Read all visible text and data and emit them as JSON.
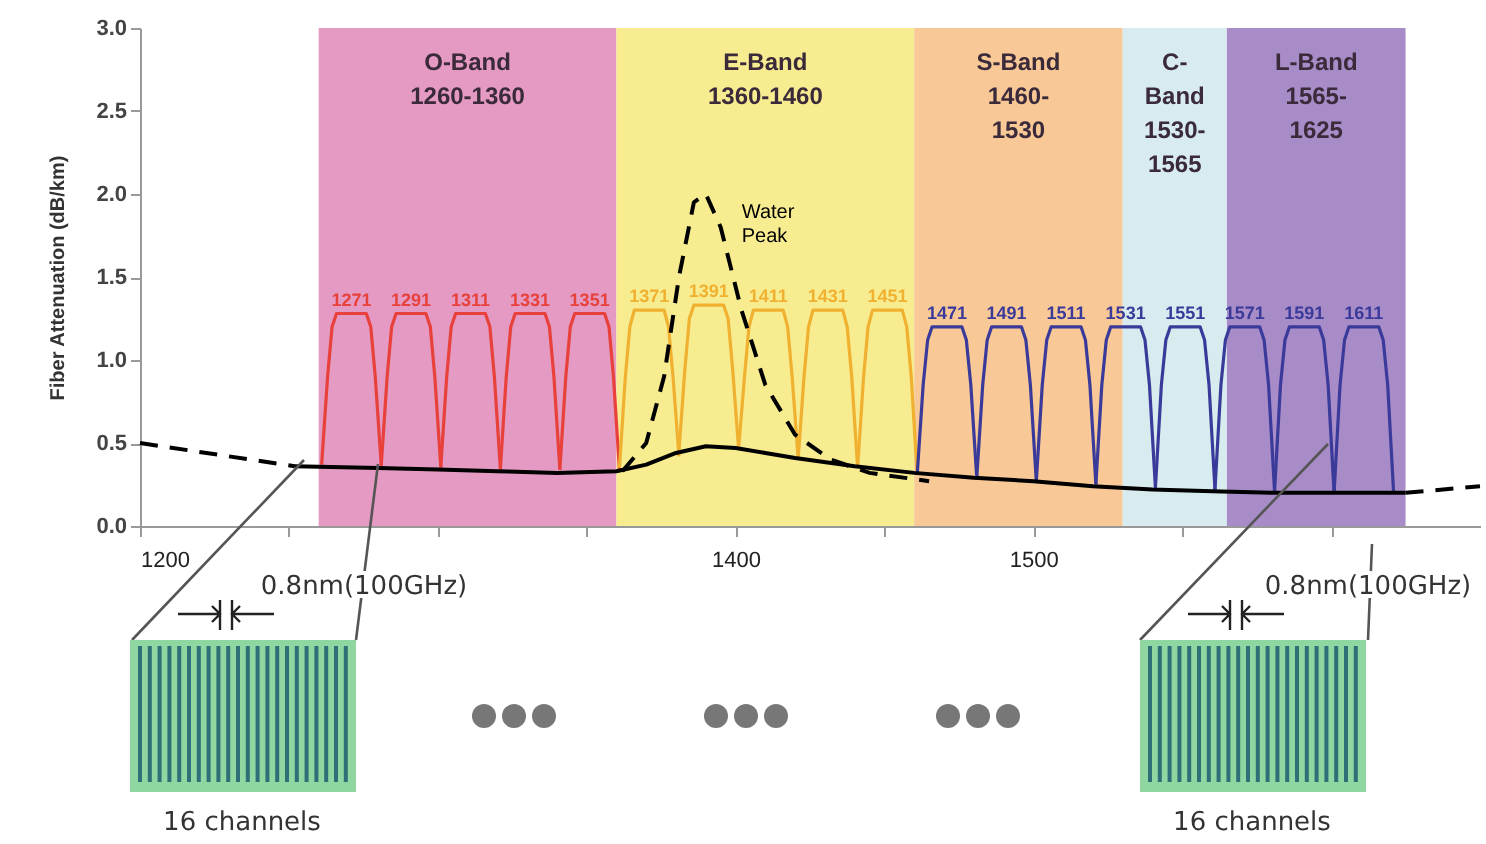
{
  "chart_data": {
    "type": "line",
    "ylabel": "Fiber Attenuation (dB/km)",
    "xlim": [
      1200,
      1650
    ],
    "ylim": [
      0,
      3
    ],
    "xticks": [
      1200,
      {
        "value": 1250,
        "label": null
      },
      {
        "value": 1300,
        "label": null
      },
      {
        "value": 1350,
        "label": null
      },
      1400,
      {
        "value": 1450,
        "label": null
      },
      1500,
      {
        "value": 1550,
        "label": null
      },
      {
        "value": 1600,
        "label": null
      }
    ],
    "yticks": [
      {
        "value": 0,
        "label": "0.0"
      },
      0.5,
      {
        "value": 1,
        "label": "1.0"
      },
      1.5,
      {
        "value": 2,
        "label": "2.0"
      },
      2.5,
      {
        "value": 3,
        "label": "3.0"
      }
    ],
    "grid": false,
    "marker": "none",
    "bands": [
      {
        "axis": "x",
        "from": 1260,
        "to": 1360,
        "label": "O-Band\n1260-1360",
        "color": "#e49ac2"
      },
      {
        "axis": "x",
        "from": 1360,
        "to": 1460,
        "label": "E-Band\n1360-1460",
        "color": "#f8ec90"
      },
      {
        "axis": "x",
        "from": 1460,
        "to": 1530,
        "label": "S-Band\n1460-\n1530",
        "color": "#f8c896"
      },
      {
        "axis": "x",
        "from": 1530,
        "to": 1565,
        "label": "C-\nBand\n1530-\n1565",
        "color": "#d8ecf0"
      },
      {
        "axis": "x",
        "from": 1565,
        "to": 1625,
        "label": "L-Band\n1565-\n1625",
        "color": "#a88cc8"
      }
    ],
    "series": [
      {
        "name": "1271",
        "color": "#e8403a",
        "x": [
          1261,
          1263,
          1264.5,
          1266,
          1276,
          1277.5,
          1279,
          1281
        ],
        "values": [
          0.37,
          0.9,
          1.2,
          1.28,
          1.28,
          1.2,
          0.9,
          0.37
        ]
      },
      {
        "name": "1291",
        "color": "#e8403a",
        "x": [
          1281,
          1283,
          1284.5,
          1286,
          1296,
          1297.5,
          1299,
          1301
        ],
        "values": [
          0.36,
          0.9,
          1.2,
          1.28,
          1.28,
          1.2,
          0.9,
          0.36
        ]
      },
      {
        "name": "1311",
        "color": "#e8403a",
        "x": [
          1301,
          1303,
          1304.5,
          1306,
          1316,
          1317.5,
          1319,
          1321
        ],
        "values": [
          0.35,
          0.9,
          1.2,
          1.28,
          1.28,
          1.2,
          0.9,
          0.35
        ]
      },
      {
        "name": "1331",
        "color": "#e8403a",
        "x": [
          1321,
          1323,
          1324.5,
          1326,
          1336,
          1337.5,
          1339,
          1341
        ],
        "values": [
          0.34,
          0.9,
          1.2,
          1.28,
          1.28,
          1.2,
          0.9,
          0.34
        ]
      },
      {
        "name": "1351",
        "color": "#e8403a",
        "x": [
          1341,
          1343,
          1344.5,
          1346,
          1356,
          1357.5,
          1359,
          1361
        ],
        "values": [
          0.34,
          0.9,
          1.2,
          1.28,
          1.28,
          1.2,
          0.9,
          0.34
        ]
      },
      {
        "name": "1371",
        "color": "#f0b030",
        "x": [
          1361,
          1363,
          1364.5,
          1366,
          1376,
          1377.5,
          1379,
          1381
        ],
        "values": [
          0.35,
          0.9,
          1.2,
          1.3,
          1.3,
          1.2,
          0.9,
          0.42
        ]
      },
      {
        "name": "1391",
        "color": "#f0b030",
        "x": [
          1381,
          1383,
          1384.5,
          1386,
          1396,
          1397.5,
          1399,
          1401
        ],
        "values": [
          0.45,
          0.95,
          1.25,
          1.33,
          1.33,
          1.25,
          0.95,
          0.47
        ]
      },
      {
        "name": "1411",
        "color": "#f0b030",
        "x": [
          1401,
          1403,
          1404.5,
          1406,
          1416,
          1417.5,
          1419,
          1421
        ],
        "values": [
          0.46,
          0.9,
          1.2,
          1.3,
          1.3,
          1.2,
          0.9,
          0.41
        ]
      },
      {
        "name": "1431",
        "color": "#f0b030",
        "x": [
          1421,
          1423,
          1424.5,
          1426,
          1436,
          1437.5,
          1439,
          1441
        ],
        "values": [
          0.4,
          0.9,
          1.2,
          1.3,
          1.3,
          1.2,
          0.9,
          0.35
        ]
      },
      {
        "name": "1451",
        "color": "#f0b030",
        "x": [
          1441,
          1443,
          1444.5,
          1446,
          1456,
          1457.5,
          1459,
          1461
        ],
        "values": [
          0.35,
          0.9,
          1.2,
          1.3,
          1.3,
          1.2,
          0.9,
          0.31
        ]
      },
      {
        "name": "1471",
        "color": "#3a3a9a",
        "x": [
          1461,
          1463,
          1464.5,
          1466,
          1476,
          1477.5,
          1479,
          1481
        ],
        "values": [
          0.31,
          0.85,
          1.12,
          1.2,
          1.2,
          1.12,
          0.85,
          0.29
        ]
      },
      {
        "name": "1491",
        "color": "#3a3a9a",
        "x": [
          1481,
          1483,
          1484.5,
          1486,
          1496,
          1497.5,
          1499,
          1501
        ],
        "values": [
          0.29,
          0.85,
          1.12,
          1.2,
          1.2,
          1.12,
          0.85,
          0.27
        ]
      },
      {
        "name": "1511",
        "color": "#3a3a9a",
        "x": [
          1501,
          1503,
          1504.5,
          1506,
          1516,
          1517.5,
          1519,
          1521
        ],
        "values": [
          0.27,
          0.85,
          1.12,
          1.2,
          1.2,
          1.12,
          0.85,
          0.25
        ]
      },
      {
        "name": "1531",
        "color": "#3a3a9a",
        "x": [
          1521,
          1523,
          1524.5,
          1526,
          1536,
          1537.5,
          1539,
          1541
        ],
        "values": [
          0.25,
          0.85,
          1.12,
          1.2,
          1.2,
          1.12,
          0.85,
          0.23
        ]
      },
      {
        "name": "1551",
        "color": "#3a3a9a",
        "x": [
          1541,
          1543,
          1544.5,
          1546,
          1556,
          1557.5,
          1559,
          1561
        ],
        "values": [
          0.23,
          0.85,
          1.12,
          1.2,
          1.2,
          1.12,
          0.85,
          0.22
        ]
      },
      {
        "name": "1571",
        "color": "#3a3a9a",
        "x": [
          1561,
          1563,
          1564.5,
          1566,
          1576,
          1577.5,
          1579,
          1581
        ],
        "values": [
          0.22,
          0.85,
          1.12,
          1.2,
          1.2,
          1.12,
          0.85,
          0.21
        ]
      },
      {
        "name": "1591",
        "color": "#3a3a9a",
        "x": [
          1581,
          1583,
          1584.5,
          1586,
          1596,
          1597.5,
          1599,
          1601
        ],
        "values": [
          0.21,
          0.85,
          1.12,
          1.2,
          1.2,
          1.12,
          0.85,
          0.2
        ]
      },
      {
        "name": "1611",
        "color": "#3a3a9a",
        "x": [
          1601,
          1603,
          1604.5,
          1606,
          1616,
          1617.5,
          1619,
          1621
        ],
        "values": [
          0.2,
          0.85,
          1.12,
          1.2,
          1.2,
          1.12,
          0.85,
          0.2
        ]
      },
      {
        "color": "#000000",
        "line_style": "dashed",
        "x": [
          1200,
          1252
        ],
        "values": [
          0.5,
          0.36
        ]
      },
      {
        "color": "#000000",
        "line_style": "dashed",
        "x": [
          1625,
          1650
        ],
        "values": [
          0.2,
          0.24
        ]
      },
      {
        "name": "Water\nPeak",
        "color": "#000000",
        "line_style": "dashed",
        "x": [
          1362,
          1370,
          1376,
          1381,
          1386,
          1390,
          1395,
          1402,
          1410,
          1420,
          1432,
          1445,
          1465
        ],
        "values": [
          0.33,
          0.5,
          0.9,
          1.5,
          1.95,
          2.0,
          1.8,
          1.3,
          0.85,
          0.55,
          0.4,
          0.32,
          0.27
        ]
      },
      {
        "color": "#000000",
        "line_style": "solid",
        "x": [
          1252,
          1280,
          1300,
          1320,
          1340,
          1360,
          1370,
          1380,
          1390,
          1400,
          1410,
          1420,
          1440,
          1460,
          1480,
          1500,
          1520,
          1540,
          1560,
          1580,
          1600,
          1625
        ],
        "values": [
          0.36,
          0.35,
          0.34,
          0.33,
          0.32,
          0.33,
          0.37,
          0.44,
          0.48,
          0.47,
          0.44,
          0.41,
          0.36,
          0.32,
          0.29,
          0.27,
          0.24,
          0.22,
          0.21,
          0.2,
          0.2,
          0.2
        ]
      }
    ],
    "annotations": [
      "0.8nm(100GHz)",
      "0.8nm(100GHz)",
      "16 channels",
      "16 channels"
    ]
  }
}
